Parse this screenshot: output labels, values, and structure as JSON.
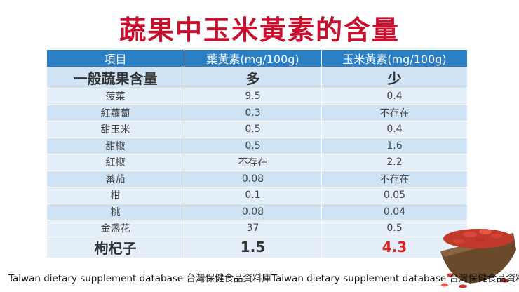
{
  "title": "蔬果中玉米黃素的含量",
  "table": {
    "headers": [
      "項目",
      "葉黃素(mg/100g)",
      "玉米黃素(mg/100g)"
    ],
    "rows": [
      [
        "一般蔬果含量",
        "多",
        "少"
      ],
      [
        "菠菜",
        "9.5",
        "0.4"
      ],
      [
        "紅蘿蔔",
        "0.3",
        "不存在"
      ],
      [
        "甜玉米",
        "0.5",
        "0.4"
      ],
      [
        "甜椒",
        "0.5",
        "1.6"
      ],
      [
        "紅椒",
        "不存在",
        "2.2"
      ],
      [
        "蕃茄",
        "0.08",
        "不存在"
      ],
      [
        "柑",
        "0.1",
        "0.05"
      ],
      [
        "桃",
        "0.08",
        "0.04"
      ],
      [
        "金盞花",
        "37",
        "0.5"
      ],
      [
        "枸杞子",
        "1.5",
        "4.3"
      ]
    ]
  },
  "footer": "Taiwan dietary supplement database 台灣保健食品資料庫Taiwan dietary supplement database 台灣保健食品資料庫",
  "colors": {
    "title": "#c8102e",
    "header_bg": "#2b7fc4",
    "row_bg": "#cfe3f5",
    "row_alt_bg": "#e4effa",
    "highlight": "#e0201f"
  },
  "decor": {
    "image": "goji-berries-bowl-icon"
  }
}
